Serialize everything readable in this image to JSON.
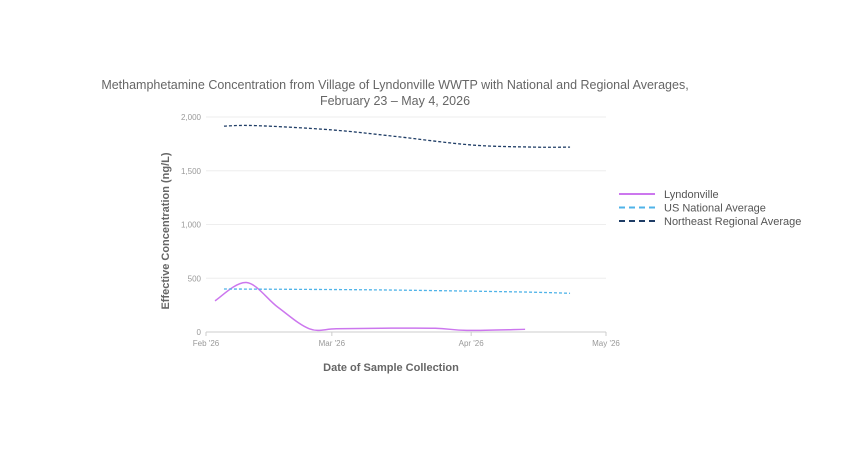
{
  "chart_data": {
    "type": "line",
    "title_line1": "Methamphetamine Concentration from Village of Lyndonville WWTP with National and Regional Averages,",
    "title_line2": "February 23 – May 4, 2026",
    "xlabel": "Date of Sample Collection",
    "ylabel": "Effective Concentration (ng/L)",
    "xlim": [
      "2026-02-01",
      "2026-05-01"
    ],
    "ylim": [
      0,
      2000
    ],
    "yticks": [
      0,
      500,
      1000,
      1500,
      2000
    ],
    "ytick_labels": [
      "0",
      "500",
      "1,000",
      "1,500",
      "2,000"
    ],
    "xticks": [
      "2026-02-01",
      "2026-03-01",
      "2026-04-01",
      "2026-05-01"
    ],
    "xtick_labels": [
      "Feb '26",
      "Mar '26",
      "Apr '26",
      "May '26"
    ],
    "grid": true,
    "legend_position": "right",
    "series": [
      {
        "name": "Lyndonville",
        "color": "#cc77ee",
        "dash": "solid",
        "x": [
          "2026-02-03",
          "2026-02-10",
          "2026-02-17",
          "2026-02-24",
          "2026-03-02",
          "2026-03-12",
          "2026-03-24",
          "2026-03-31",
          "2026-04-13"
        ],
        "y": [
          290,
          460,
          230,
          30,
          30,
          35,
          35,
          15,
          25
        ]
      },
      {
        "name": "US National Average",
        "color": "#4fb3e8",
        "dash": "dashed",
        "x": [
          "2026-02-05",
          "2026-03-01",
          "2026-03-15",
          "2026-04-01",
          "2026-04-15",
          "2026-04-23"
        ],
        "y": [
          400,
          395,
          390,
          380,
          370,
          360
        ]
      },
      {
        "name": "Northeast Regional Average",
        "color": "#1f3d66",
        "dash": "dashed",
        "x": [
          "2026-02-05",
          "2026-02-12",
          "2026-03-01",
          "2026-03-15",
          "2026-04-01",
          "2026-04-15",
          "2026-04-23"
        ],
        "y": [
          1915,
          1920,
          1880,
          1820,
          1740,
          1720,
          1720
        ]
      }
    ]
  }
}
